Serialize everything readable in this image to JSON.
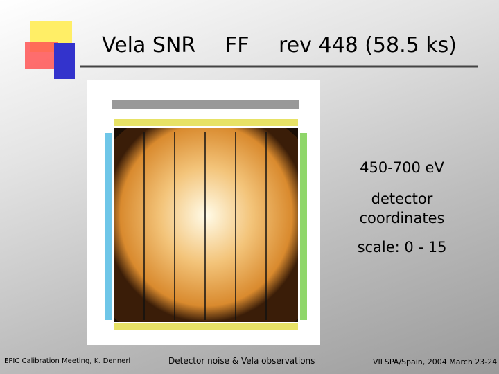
{
  "header": {
    "target": "Vela SNR",
    "mode": "FF",
    "revolution": "rev 448  (58.5 ks)"
  },
  "notes": [
    "450-700 eV",
    "detector",
    "coordinates",
    "scale: 0 - 15"
  ],
  "footer": {
    "left": "EPIC Calibration Meeting, K. Dennerl",
    "center": "Detector noise & Vela observations",
    "right": "VILSPA/Spain, 2004 March 23-24"
  }
}
